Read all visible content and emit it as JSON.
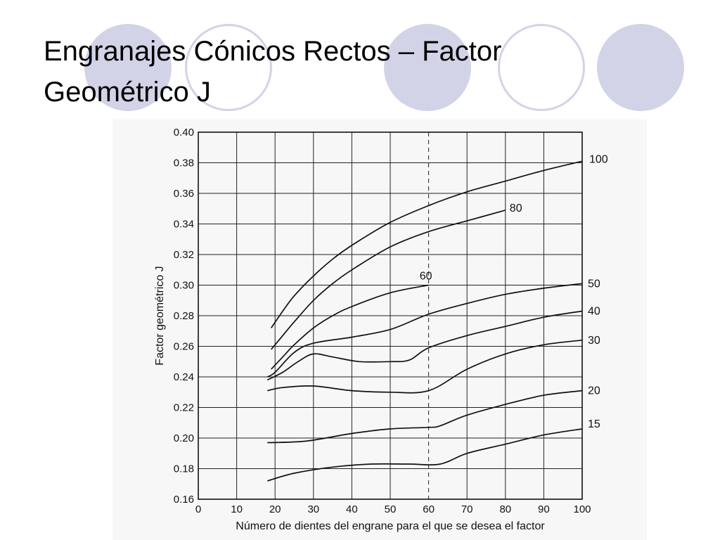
{
  "slide": {
    "title_line1": "Engranajes Cónicos Rectos – Factor",
    "title_line2": "Geométrico J",
    "accent_color": "#d3d3e8"
  },
  "chart_data": {
    "type": "line",
    "title": "",
    "xlabel": "Número de dientes del engrane para el que se desea el factor",
    "ylabel": "Factor geométrico J",
    "xlim": [
      0,
      100
    ],
    "ylim": [
      0.16,
      0.4
    ],
    "x_ticks": [
      0,
      10,
      20,
      30,
      40,
      50,
      60,
      70,
      80,
      90,
      100
    ],
    "y_ticks": [
      "0.16",
      "0.18",
      "0.20",
      "0.22",
      "0.24",
      "0.26",
      "0.28",
      "0.30",
      "0.32",
      "0.34",
      "0.36",
      "0.38",
      "0.40"
    ],
    "grid": true,
    "series": [
      {
        "name": "100",
        "points": [
          [
            19,
            0.272
          ],
          [
            22,
            0.283
          ],
          [
            25,
            0.293
          ],
          [
            30,
            0.306
          ],
          [
            35,
            0.317
          ],
          [
            40,
            0.326
          ],
          [
            50,
            0.341
          ],
          [
            60,
            0.352
          ],
          [
            70,
            0.361
          ],
          [
            80,
            0.368
          ],
          [
            90,
            0.375
          ],
          [
            100,
            0.381
          ]
        ]
      },
      {
        "name": "80",
        "points": [
          [
            19,
            0.258
          ],
          [
            22,
            0.267
          ],
          [
            25,
            0.276
          ],
          [
            30,
            0.29
          ],
          [
            35,
            0.301
          ],
          [
            40,
            0.31
          ],
          [
            50,
            0.325
          ],
          [
            60,
            0.335
          ],
          [
            70,
            0.342
          ],
          [
            80,
            0.349
          ]
        ]
      },
      {
        "name": "60",
        "points": [
          [
            19,
            0.245
          ],
          [
            22,
            0.253
          ],
          [
            25,
            0.261
          ],
          [
            30,
            0.272
          ],
          [
            35,
            0.28
          ],
          [
            40,
            0.286
          ],
          [
            50,
            0.295
          ],
          [
            60,
            0.3
          ]
        ]
      },
      {
        "name": "50",
        "points": [
          [
            18,
            0.24
          ],
          [
            20,
            0.243
          ],
          [
            25,
            0.256
          ],
          [
            30,
            0.262
          ],
          [
            40,
            0.266
          ],
          [
            50,
            0.271
          ],
          [
            60,
            0.281
          ],
          [
            70,
            0.288
          ],
          [
            80,
            0.294
          ],
          [
            90,
            0.298
          ],
          [
            100,
            0.301
          ]
        ]
      },
      {
        "name": "40",
        "points": [
          [
            18,
            0.238
          ],
          [
            22,
            0.243
          ],
          [
            26,
            0.25
          ],
          [
            30,
            0.255
          ],
          [
            35,
            0.253
          ],
          [
            42,
            0.25
          ],
          [
            50,
            0.25
          ],
          [
            55,
            0.251
          ],
          [
            60,
            0.259
          ],
          [
            70,
            0.267
          ],
          [
            80,
            0.273
          ],
          [
            90,
            0.279
          ],
          [
            100,
            0.283
          ]
        ]
      },
      {
        "name": "30",
        "points": [
          [
            18,
            0.231
          ],
          [
            22,
            0.233
          ],
          [
            30,
            0.234
          ],
          [
            40,
            0.231
          ],
          [
            50,
            0.23
          ],
          [
            60,
            0.231
          ],
          [
            70,
            0.245
          ],
          [
            80,
            0.255
          ],
          [
            90,
            0.261
          ],
          [
            100,
            0.264
          ]
        ]
      },
      {
        "name": "20",
        "points": [
          [
            18,
            0.197
          ],
          [
            28,
            0.198
          ],
          [
            40,
            0.203
          ],
          [
            50,
            0.206
          ],
          [
            60,
            0.207
          ],
          [
            63,
            0.208
          ],
          [
            70,
            0.215
          ],
          [
            80,
            0.222
          ],
          [
            90,
            0.228
          ],
          [
            100,
            0.231
          ]
        ]
      },
      {
        "name": "15",
        "points": [
          [
            18,
            0.172
          ],
          [
            25,
            0.177
          ],
          [
            35,
            0.181
          ],
          [
            45,
            0.183
          ],
          [
            55,
            0.183
          ],
          [
            63,
            0.183
          ],
          [
            70,
            0.19
          ],
          [
            80,
            0.196
          ],
          [
            90,
            0.202
          ],
          [
            100,
            0.206
          ]
        ]
      }
    ]
  }
}
